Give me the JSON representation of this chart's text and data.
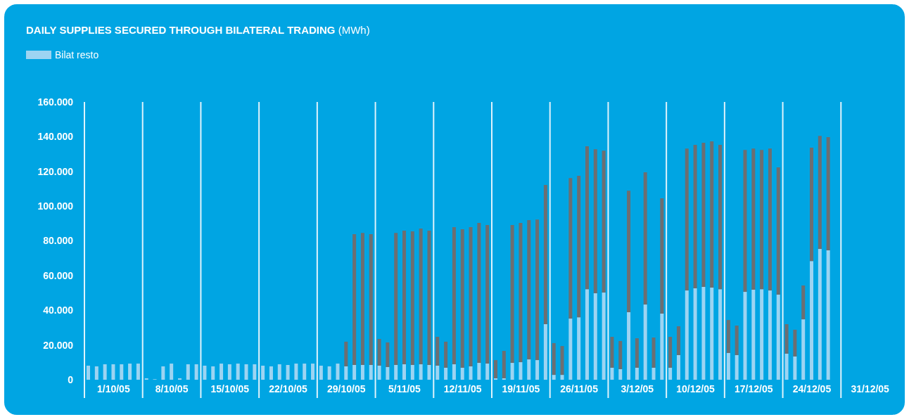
{
  "chart_data": {
    "type": "bar",
    "title": "DAILY SUPPLIES SECURED THROUGH BILATERAL TRADING (MWh)",
    "categories": [
      null,
      null,
      null,
      "1/10/05",
      null,
      null,
      null,
      null,
      null,
      null,
      "8/10/05",
      null,
      null,
      null,
      null,
      null,
      null,
      "15/10/05",
      null,
      null,
      null,
      null,
      null,
      null,
      "22/10/05",
      null,
      null,
      null,
      null,
      null,
      null,
      "29/10/05",
      null,
      null,
      null,
      null,
      null,
      null,
      "5/11/05",
      null,
      null,
      null,
      null,
      null,
      null,
      "12/11/05",
      null,
      null,
      null,
      null,
      null,
      null,
      "19/11/05",
      null,
      null,
      null,
      null,
      null,
      null,
      "26/11/05",
      null,
      null,
      null,
      null,
      null,
      null,
      "3/12/05",
      null,
      null,
      null,
      null,
      null,
      null,
      "10/12/05",
      null,
      null,
      null,
      null,
      null,
      null,
      "17/12/05",
      null,
      null,
      null,
      null,
      null,
      null,
      "24/12/05",
      null,
      null,
      null,
      null,
      null,
      null,
      "31/12/05",
      null,
      null,
      null
    ],
    "stacked": true,
    "series": [
      {
        "name": "Bilat resto",
        "color": "#9dd4f2",
        "values": [
          8100,
          7700,
          8900,
          8900,
          8900,
          9300,
          9300,
          800,
          300,
          7700,
          9300,
          800,
          8900,
          8900,
          8100,
          7700,
          9300,
          8900,
          9300,
          8900,
          8900,
          8100,
          7700,
          8900,
          8500,
          9300,
          9300,
          9300,
          8100,
          7700,
          9300,
          7700,
          8500,
          8500,
          8500,
          8100,
          7300,
          8500,
          8900,
          8500,
          8900,
          8500,
          8100,
          6900,
          8900,
          6900,
          7700,
          9700,
          9300,
          800,
          800,
          9700,
          10100,
          11700,
          11300,
          32000,
          2800,
          2800,
          35200,
          36000,
          52200,
          49800,
          50200,
          6900,
          6100,
          38900,
          6900,
          43300,
          6900,
          38100,
          6900,
          14200,
          51400,
          52700,
          53500,
          53100,
          52200,
          15400,
          14200,
          50600,
          51800,
          52200,
          51400,
          49000,
          15000,
          13400,
          34800,
          68400,
          75300,
          74500,
          null,
          null,
          null,
          null,
          null,
          null,
          null,
          null
        ]
      },
      {
        "color": "#6d6e71",
        "values": [
          0,
          0,
          0,
          0,
          0,
          0,
          0,
          0,
          0,
          0,
          0,
          0,
          0,
          0,
          0,
          0,
          0,
          0,
          0,
          0,
          0,
          0,
          0,
          0,
          0,
          0,
          0,
          0,
          0,
          0,
          0,
          14200,
          75300,
          76100,
          75300,
          15400,
          14200,
          76100,
          77000,
          77000,
          78200,
          77400,
          16600,
          15000,
          79000,
          79800,
          80200,
          80600,
          79800,
          10500,
          15800,
          79400,
          80200,
          80200,
          81000,
          80200,
          18300,
          16600,
          81000,
          81500,
          82300,
          83000,
          81800,
          17800,
          16200,
          70000,
          17000,
          76200,
          17400,
          66400,
          17800,
          16600,
          81800,
          82600,
          83000,
          84200,
          83100,
          19000,
          17000,
          81800,
          81400,
          80200,
          81800,
          73300,
          17000,
          15400,
          19500,
          65300,
          65200,
          65200,
          null,
          null,
          null,
          null,
          null,
          null,
          null,
          null
        ]
      }
    ],
    "ylim": [
      0,
      160000
    ],
    "yticks": [
      0,
      {
        "value": 20000,
        "label": "20.000"
      },
      {
        "value": 40000,
        "label": "40.000"
      },
      {
        "value": 60000,
        "label": "60.000"
      },
      {
        "value": 80000,
        "label": "80.000"
      },
      {
        "value": 100000,
        "label": "100.000"
      },
      {
        "value": 120000,
        "label": "120.000"
      },
      {
        "value": 140000,
        "label": "140.000"
      },
      {
        "value": 160000,
        "label": "160.000"
      }
    ],
    "grid": "x",
    "legend": "top left"
  }
}
